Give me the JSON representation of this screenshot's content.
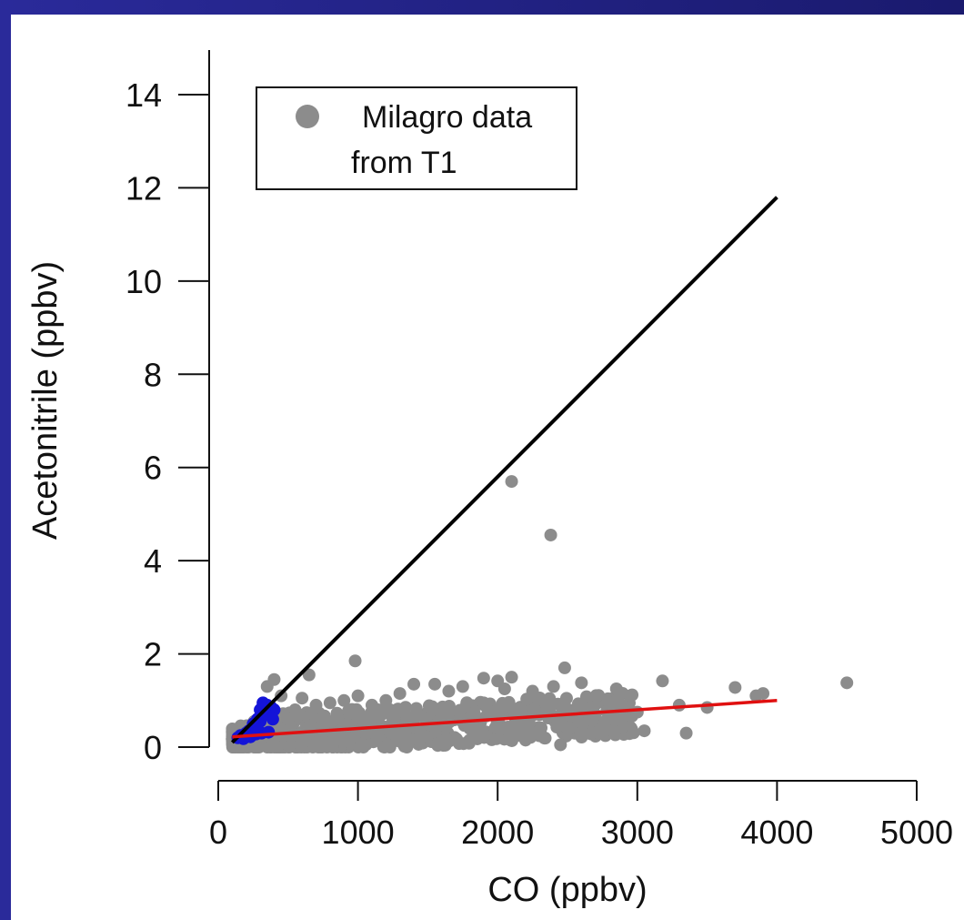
{
  "chart_data": {
    "type": "scatter",
    "xlabel": "CO (ppbv)",
    "ylabel": "Acetonitrile (ppbv)",
    "xlim": [
      0,
      5000
    ],
    "ylim": [
      0,
      14
    ],
    "xticks": [
      "0",
      "1000",
      "2000",
      "3000",
      "4000",
      "5000"
    ],
    "yticks": [
      "0",
      "2",
      "4",
      "6",
      "8",
      "10",
      "12",
      "14"
    ],
    "legend": {
      "position": "top-left",
      "text_line1": "Milagro data",
      "text_line2": "from T1"
    },
    "series": [
      {
        "name": "Milagro data from T1",
        "color": "#8c8c8c",
        "points": [
          [
            2100,
            5.7
          ],
          [
            2380,
            4.55
          ],
          [
            980,
            1.85
          ],
          [
            4500,
            1.38
          ],
          [
            3180,
            1.42
          ],
          [
            2480,
            1.7
          ],
          [
            2100,
            1.5
          ],
          [
            1900,
            1.48
          ],
          [
            2000,
            1.42
          ],
          [
            2600,
            1.38
          ],
          [
            3700,
            1.28
          ],
          [
            3900,
            1.15
          ],
          [
            3850,
            1.1
          ],
          [
            2850,
            1.25
          ],
          [
            2950,
            1.1
          ],
          [
            3300,
            0.9
          ],
          [
            3500,
            0.85
          ],
          [
            3000,
            0.75
          ],
          [
            2700,
            0.7
          ],
          [
            2900,
            0.45
          ],
          [
            3350,
            0.3
          ],
          [
            3050,
            0.35
          ],
          [
            2200,
            0.15
          ],
          [
            2450,
            0.05
          ],
          [
            2580,
            0.55
          ],
          [
            2800,
            0.95
          ],
          [
            2300,
            1.05
          ],
          [
            1750,
            1.3
          ],
          [
            1650,
            1.2
          ],
          [
            1550,
            1.35
          ],
          [
            1400,
            1.35
          ],
          [
            1300,
            1.15
          ],
          [
            1200,
            1.0
          ],
          [
            1100,
            0.9
          ],
          [
            1000,
            1.1
          ],
          [
            900,
            1.0
          ],
          [
            800,
            0.95
          ],
          [
            700,
            0.9
          ],
          [
            600,
            1.05
          ],
          [
            650,
            1.55
          ],
          [
            400,
            1.45
          ],
          [
            350,
            1.3
          ],
          [
            450,
            1.1
          ],
          [
            550,
            0.8
          ],
          [
            500,
            0.6
          ],
          [
            300,
            0.55
          ],
          [
            250,
            0.45
          ],
          [
            200,
            0.35
          ],
          [
            150,
            0.25
          ],
          [
            120,
            0.2
          ],
          [
            1500,
            0.5
          ],
          [
            1800,
            0.4
          ],
          [
            2000,
            0.8
          ],
          [
            1900,
            0.95
          ],
          [
            1600,
            0.7
          ],
          [
            1350,
            0.6
          ],
          [
            1250,
            0.4
          ],
          [
            1050,
            0.3
          ],
          [
            850,
            0.25
          ],
          [
            750,
            0.5
          ],
          [
            2150,
            0.6
          ],
          [
            2350,
            0.75
          ],
          [
            2250,
            1.2
          ],
          [
            2400,
            1.3
          ],
          [
            2050,
            1.25
          ]
        ]
      },
      {
        "name": "",
        "color": "#1414d8",
        "points": [
          [
            160,
            0.25
          ],
          [
            200,
            0.3
          ],
          [
            220,
            0.35
          ],
          [
            250,
            0.5
          ],
          [
            280,
            0.6
          ],
          [
            300,
            0.8
          ],
          [
            320,
            0.95
          ],
          [
            350,
            0.9
          ],
          [
            380,
            0.85
          ],
          [
            400,
            0.8
          ],
          [
            230,
            0.22
          ],
          [
            270,
            0.28
          ],
          [
            310,
            0.3
          ],
          [
            360,
            0.32
          ],
          [
            300,
            0.55
          ],
          [
            270,
            0.45
          ],
          [
            340,
            0.7
          ],
          [
            390,
            0.6
          ],
          [
            180,
            0.18
          ],
          [
            140,
            0.2
          ]
        ]
      }
    ],
    "lines": [
      {
        "color": "#000000",
        "from": [
          100,
          0.1
        ],
        "to": [
          4000,
          11.8
        ]
      },
      {
        "color": "#e01010",
        "from": [
          100,
          0.22
        ],
        "to": [
          4000,
          1.0
        ]
      }
    ]
  }
}
